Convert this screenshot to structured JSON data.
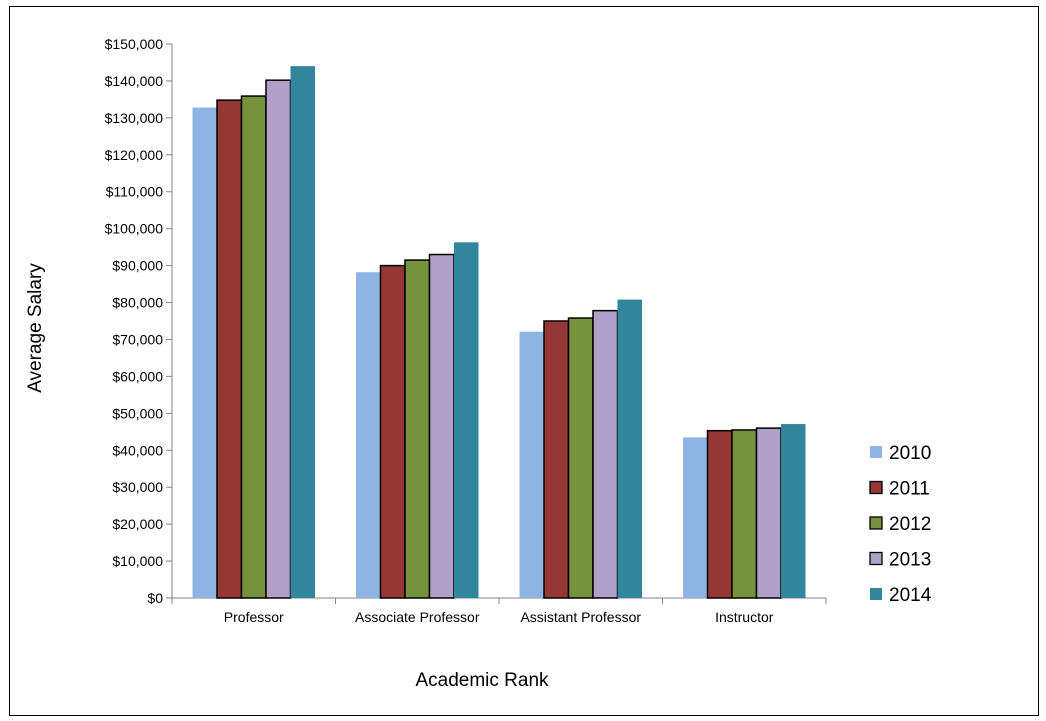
{
  "chart_data": {
    "type": "bar",
    "title": "",
    "xlabel": "Academic Rank",
    "ylabel": "Average Salary",
    "ylim": [
      0,
      150000
    ],
    "ytick_step": 10000,
    "ytick_format": "currency",
    "grid": false,
    "legend_position": "right",
    "categories": [
      "Professor",
      "Associate Professor",
      "Assistant Professor",
      "Instructor"
    ],
    "series": [
      {
        "name": "2010",
        "color": "#8db4e2",
        "outlined": false,
        "values": [
          132800,
          88200,
          72100,
          43500
        ]
      },
      {
        "name": "2011",
        "color": "#953735",
        "outlined": true,
        "values": [
          134800,
          90000,
          75000,
          45300
        ]
      },
      {
        "name": "2012",
        "color": "#76923c",
        "outlined": true,
        "values": [
          135900,
          91500,
          75800,
          45500
        ]
      },
      {
        "name": "2013",
        "color": "#b1a0c7",
        "outlined": true,
        "values": [
          140200,
          93000,
          77800,
          46000
        ]
      },
      {
        "name": "2014",
        "color": "#31859c",
        "outlined": false,
        "values": [
          144000,
          96300,
          80800,
          47100
        ]
      }
    ]
  }
}
